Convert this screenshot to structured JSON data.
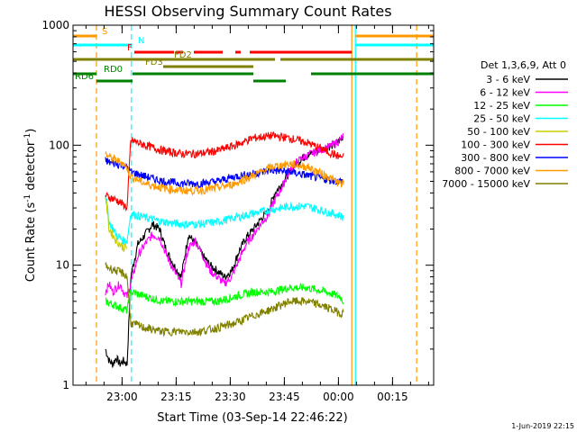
{
  "chart_data": {
    "type": "line",
    "title": "HESSI Observing Summary Count Rates",
    "xlabel": "Start Time (03-Sep-14 22:46:22)",
    "ylabel": "Count Rate (s⁻¹ detector⁻¹)",
    "ylabel_main": "Count Rate (s",
    "ylabel_sup1": "-1",
    "ylabel_mid": " detector",
    "ylabel_sup2": "-1",
    "ylabel_end": ")",
    "y_scale": "log",
    "ylim": [
      1,
      1000
    ],
    "xlim_minutes": [
      0,
      100
    ],
    "y_ticks": [
      {
        "value": 1,
        "label": "1"
      },
      {
        "value": 10,
        "label": "10"
      },
      {
        "value": 100,
        "label": "100"
      },
      {
        "value": 1000,
        "label": "1000"
      }
    ],
    "x_ticks": [
      {
        "minute": 13.6,
        "label": "23:00"
      },
      {
        "minute": 28.6,
        "label": "23:15"
      },
      {
        "minute": 43.6,
        "label": "23:30"
      },
      {
        "minute": 58.6,
        "label": "23:45"
      },
      {
        "minute": 73.6,
        "label": "00:00"
      },
      {
        "minute": 88.6,
        "label": "00:15"
      }
    ],
    "legend_title": "Det 1,3,6,9, Att 0",
    "legend_position": "right",
    "series": [
      {
        "name": "3 - 6 keV",
        "color": "#000000",
        "x": [
          9,
          10,
          11,
          12,
          13,
          14,
          15,
          16,
          17,
          18,
          20,
          22,
          24,
          26,
          28,
          30,
          32,
          34,
          36,
          38,
          40,
          42,
          44,
          46,
          48,
          50,
          52,
          54,
          56,
          58,
          60,
          62,
          64,
          66,
          68,
          70,
          72,
          74,
          75
        ],
        "y": [
          2,
          1.6,
          1.5,
          1.7,
          1.5,
          1.6,
          1.5,
          8,
          11,
          15,
          18,
          22,
          20,
          13,
          10,
          8,
          18,
          15,
          12,
          10,
          9,
          8,
          9,
          13,
          17,
          20,
          24,
          28,
          40,
          48,
          60,
          70,
          80,
          85,
          90,
          95,
          100,
          110,
          120
        ]
      },
      {
        "name": "6 - 12 keV",
        "color": "#ff00ff",
        "x": [
          9,
          10,
          11,
          12,
          13,
          14,
          15,
          16,
          17,
          18,
          20,
          22,
          24,
          26,
          28,
          30,
          32,
          34,
          36,
          38,
          40,
          42,
          44,
          46,
          48,
          50,
          52,
          54,
          56,
          58,
          60,
          62,
          64,
          66,
          68,
          70,
          72,
          74,
          75
        ],
        "y": [
          6,
          7,
          6,
          6.5,
          7,
          6,
          5.5,
          7,
          9,
          12,
          15,
          18,
          17,
          12,
          9,
          7,
          14,
          16,
          12,
          9,
          8,
          7,
          8,
          11,
          15,
          18,
          22,
          26,
          35,
          45,
          60,
          72,
          80,
          85,
          90,
          95,
          100,
          110,
          120
        ]
      },
      {
        "name": "12 - 25 keV",
        "color": "#00ff00",
        "x": [
          9,
          12,
          15,
          16,
          20,
          25,
          30,
          35,
          40,
          45,
          50,
          55,
          60,
          65,
          70,
          74,
          75
        ],
        "y": [
          5,
          4.6,
          4.2,
          6,
          5.5,
          5,
          5,
          5,
          5,
          5.5,
          6,
          6,
          6.5,
          6.5,
          6,
          5.5,
          5
        ]
      },
      {
        "name": "25 - 50 keV",
        "color": "#00ffff",
        "x": [
          9,
          10,
          12,
          14,
          15,
          16,
          20,
          25,
          30,
          35,
          40,
          45,
          50,
          55,
          60,
          65,
          70,
          74,
          75
        ],
        "y": [
          40,
          23,
          18,
          16,
          16,
          27,
          25,
          23,
          22,
          22,
          23,
          25,
          27,
          29,
          31,
          31,
          28,
          26,
          25
        ]
      },
      {
        "name": "50 - 100 keV",
        "color": "#cccc00",
        "x": [
          9,
          10,
          12,
          14,
          15
        ],
        "y": [
          38,
          20,
          16,
          14,
          14
        ]
      },
      {
        "name": "100 - 300 keV",
        "color": "#ff0000",
        "x": [
          9,
          10,
          12,
          14,
          15,
          16,
          20,
          25,
          30,
          35,
          40,
          45,
          50,
          55,
          60,
          65,
          70,
          74,
          75
        ],
        "y": [
          38,
          37,
          35,
          32,
          30,
          110,
          100,
          90,
          85,
          85,
          90,
          100,
          115,
          120,
          115,
          105,
          90,
          80,
          80
        ]
      },
      {
        "name": "300 - 800 keV",
        "color": "#0000ff",
        "x": [
          9,
          10,
          12,
          14,
          15,
          16,
          20,
          25,
          30,
          35,
          40,
          45,
          50,
          55,
          60,
          65,
          70,
          74,
          75
        ],
        "y": [
          75,
          72,
          70,
          68,
          65,
          60,
          55,
          50,
          48,
          48,
          50,
          55,
          58,
          62,
          60,
          56,
          52,
          50,
          50
        ]
      },
      {
        "name": "800 - 7000 keV",
        "color": "#ff9900",
        "x": [
          9,
          10,
          12,
          14,
          15,
          16,
          20,
          25,
          30,
          35,
          40,
          45,
          50,
          55,
          60,
          65,
          70,
          74,
          75
        ],
        "y": [
          85,
          80,
          75,
          70,
          65,
          55,
          48,
          44,
          42,
          42,
          44,
          48,
          56,
          66,
          70,
          66,
          56,
          48,
          48
        ]
      },
      {
        "name": "7000 - 15000 keV",
        "color": "#808000",
        "x": [
          9,
          10,
          12,
          14,
          15,
          16,
          20,
          25,
          30,
          35,
          40,
          45,
          50,
          55,
          60,
          65,
          70,
          74,
          75
        ],
        "y": [
          10,
          9.5,
          9,
          8.5,
          8,
          3.3,
          3,
          2.8,
          2.8,
          2.8,
          3,
          3.3,
          3.8,
          4.3,
          5,
          5,
          4.5,
          4,
          4
        ]
      }
    ],
    "vertical_markers": [
      {
        "minute": 6.5,
        "color": "#ff9900",
        "style": "dashed"
      },
      {
        "minute": 16.2,
        "color": "#00ffff",
        "style": "dashed"
      },
      {
        "minute": 77.3,
        "color": "#ff9900",
        "style": "solid"
      },
      {
        "minute": 78.3,
        "color": "#00ffff",
        "style": "solid"
      },
      {
        "minute": 95.3,
        "color": "#ff9900",
        "style": "dashed"
      }
    ],
    "flags": [
      {
        "label": "S",
        "color": "#ff9900",
        "label_minute": 7.5,
        "segments": [
          [
            0,
            6.5
          ],
          [
            78.3,
            100
          ]
        ]
      },
      {
        "label": "N",
        "color": "#00ffff",
        "label_minute": 17.5,
        "segments": [
          [
            0,
            16.2
          ],
          [
            78.3,
            100
          ]
        ]
      },
      {
        "label": "F",
        "color": "#ff0000",
        "label_minute": 14.5,
        "segments": [
          [
            17,
            28
          ],
          [
            28.5,
            30.5
          ],
          [
            33.5,
            41.5
          ],
          [
            45,
            46.5
          ],
          [
            49,
            77.3
          ]
        ]
      },
      {
        "label": "FD2",
        "color": "#808000",
        "label_minute": 27.5,
        "segments": [
          [
            0,
            56
          ],
          [
            57.5,
            100
          ]
        ]
      },
      {
        "label": "FD3",
        "color": "#808000",
        "label_minute": 19.5,
        "segments": [
          [
            25,
            50
          ]
        ]
      },
      {
        "label": "RD0",
        "color": "#008000",
        "label_minute": 8,
        "segments": [
          [
            0,
            6.5
          ],
          [
            16.5,
            50
          ],
          [
            66,
            100
          ]
        ]
      },
      {
        "label": "RD6",
        "color": "#008000",
        "label_minute": 0,
        "segments": [
          [
            6.5,
            16.5
          ],
          [
            50,
            59
          ]
        ]
      }
    ],
    "annotation": "1-Jun-2019 22:15"
  }
}
